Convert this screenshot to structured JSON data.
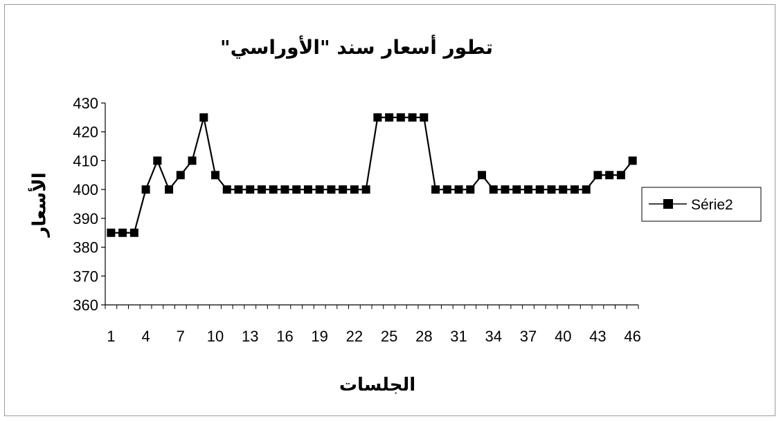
{
  "chart_data": {
    "type": "line",
    "title": "تطور أسعار سند \"الأوراسي\"",
    "xlabel": "الجلسات",
    "ylabel": "الأسعار",
    "ylim": [
      360,
      430
    ],
    "yticks": [
      360,
      370,
      380,
      390,
      400,
      410,
      420,
      430
    ],
    "xtick_labels": [
      "1",
      "4",
      "7",
      "10",
      "13",
      "16",
      "19",
      "22",
      "25",
      "28",
      "31",
      "34",
      "37",
      "40",
      "43",
      "46"
    ],
    "x": [
      1,
      2,
      3,
      4,
      5,
      6,
      7,
      8,
      9,
      10,
      11,
      12,
      13,
      14,
      15,
      16,
      17,
      18,
      19,
      20,
      21,
      22,
      23,
      24,
      25,
      26,
      27,
      28,
      29,
      30,
      31,
      32,
      33,
      34,
      35,
      36,
      37,
      38,
      39,
      40,
      41,
      42,
      43,
      44,
      45,
      46
    ],
    "series": [
      {
        "name": "Série2",
        "marker": "square",
        "color": "#000000",
        "values": [
          385,
          385,
          385,
          400,
          410,
          400,
          405,
          410,
          425,
          405,
          400,
          400,
          400,
          400,
          400,
          400,
          400,
          400,
          400,
          400,
          400,
          400,
          400,
          425,
          425,
          425,
          425,
          425,
          400,
          400,
          400,
          400,
          405,
          400,
          400,
          400,
          400,
          400,
          400,
          400,
          400,
          400,
          405,
          405,
          405,
          410
        ]
      }
    ],
    "legend": "right",
    "grid": false
  }
}
